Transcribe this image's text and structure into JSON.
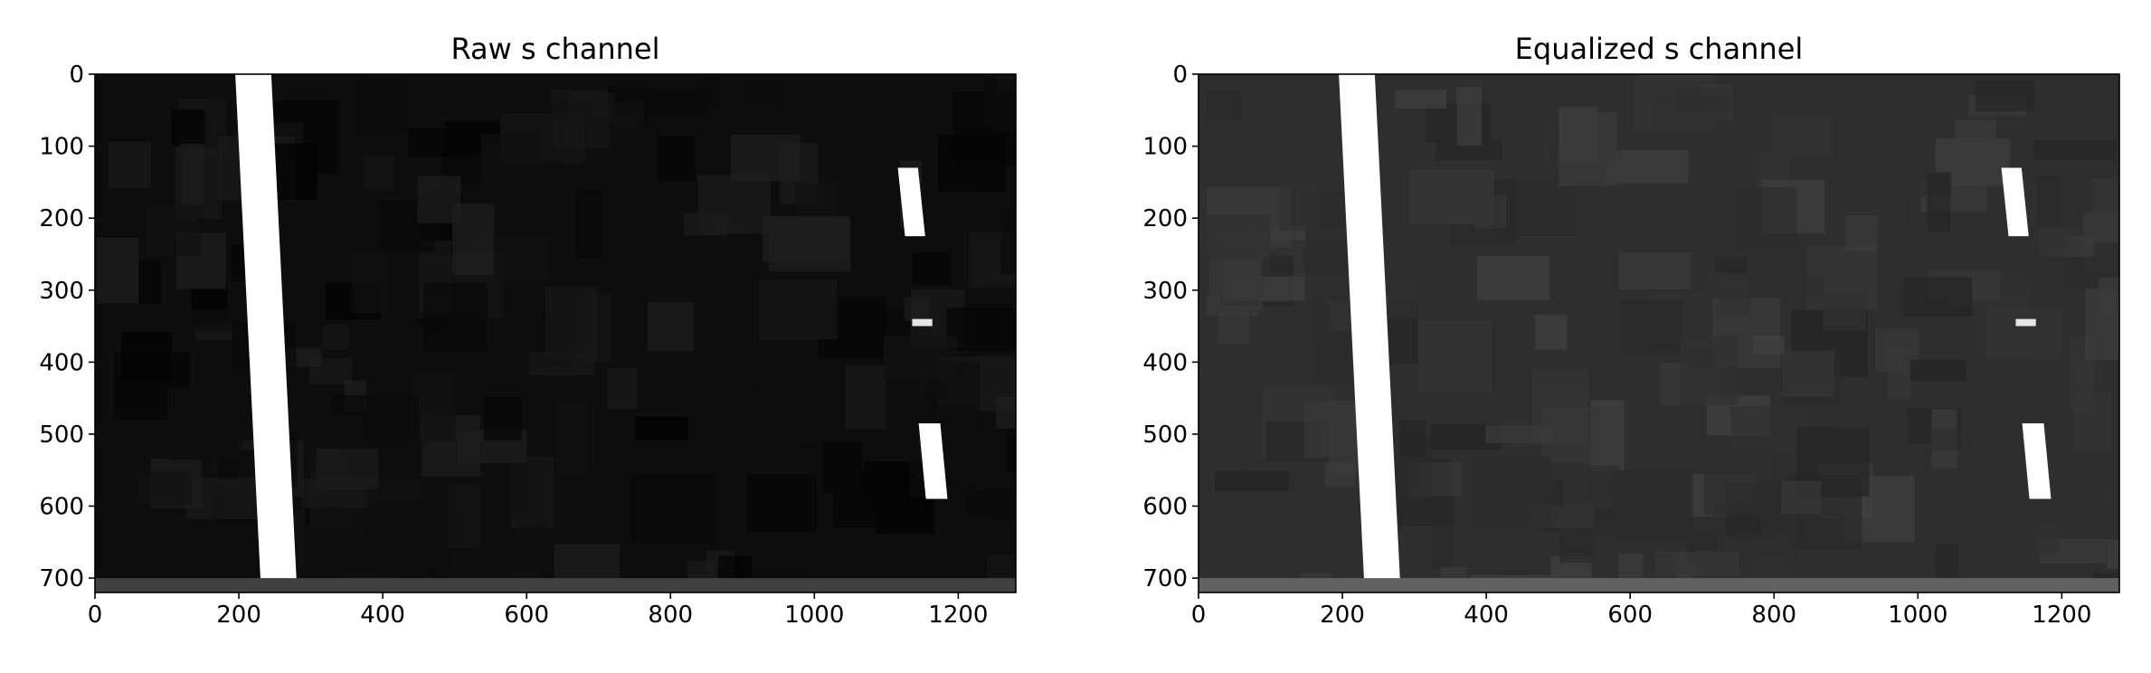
{
  "chart_data": [
    {
      "type": "heatmap",
      "title": "Raw s channel",
      "xlabel": "",
      "ylabel": "",
      "xlim": [
        0,
        1280
      ],
      "ylim": [
        720,
        0
      ],
      "xticks": [
        0,
        200,
        400,
        600,
        800,
        1000,
        1200
      ],
      "yticks": [
        0,
        100,
        200,
        300,
        400,
        500,
        600,
        700
      ],
      "colormap": "gray",
      "background_level": 0.05,
      "lane_marks": [
        {
          "name": "left-lane-line",
          "x_top": 220,
          "x_bottom": 255,
          "y_start": 0,
          "y_end": 700,
          "width": 50,
          "intensity": 1.0
        },
        {
          "name": "right-dash-upper",
          "x_top": 1130,
          "x_bottom": 1140,
          "y_start": 130,
          "y_end": 225,
          "width": 28,
          "intensity": 1.0
        },
        {
          "name": "right-dash-middle",
          "x_top": 1150,
          "x_bottom": 1150,
          "y_start": 340,
          "y_end": 350,
          "width": 28,
          "intensity": 0.9
        },
        {
          "name": "right-dash-lower",
          "x_top": 1160,
          "x_bottom": 1170,
          "y_start": 485,
          "y_end": 590,
          "width": 30,
          "intensity": 1.0
        }
      ]
    },
    {
      "type": "heatmap",
      "title": "Equalized s channel",
      "xlabel": "",
      "ylabel": "",
      "xlim": [
        0,
        1280
      ],
      "ylim": [
        720,
        0
      ],
      "xticks": [
        0,
        200,
        400,
        600,
        800,
        1000,
        1200
      ],
      "yticks": [
        0,
        100,
        200,
        300,
        400,
        500,
        600,
        700
      ],
      "colormap": "gray",
      "background_level": 0.18,
      "lane_marks": [
        {
          "name": "left-lane-line",
          "x_top": 220,
          "x_bottom": 255,
          "y_start": 0,
          "y_end": 700,
          "width": 50,
          "intensity": 1.0
        },
        {
          "name": "right-dash-upper",
          "x_top": 1130,
          "x_bottom": 1140,
          "y_start": 130,
          "y_end": 225,
          "width": 28,
          "intensity": 1.0
        },
        {
          "name": "right-dash-middle",
          "x_top": 1150,
          "x_bottom": 1150,
          "y_start": 340,
          "y_end": 350,
          "width": 28,
          "intensity": 0.9
        },
        {
          "name": "right-dash-lower",
          "x_top": 1160,
          "x_bottom": 1170,
          "y_start": 485,
          "y_end": 590,
          "width": 30,
          "intensity": 1.0
        }
      ]
    }
  ]
}
